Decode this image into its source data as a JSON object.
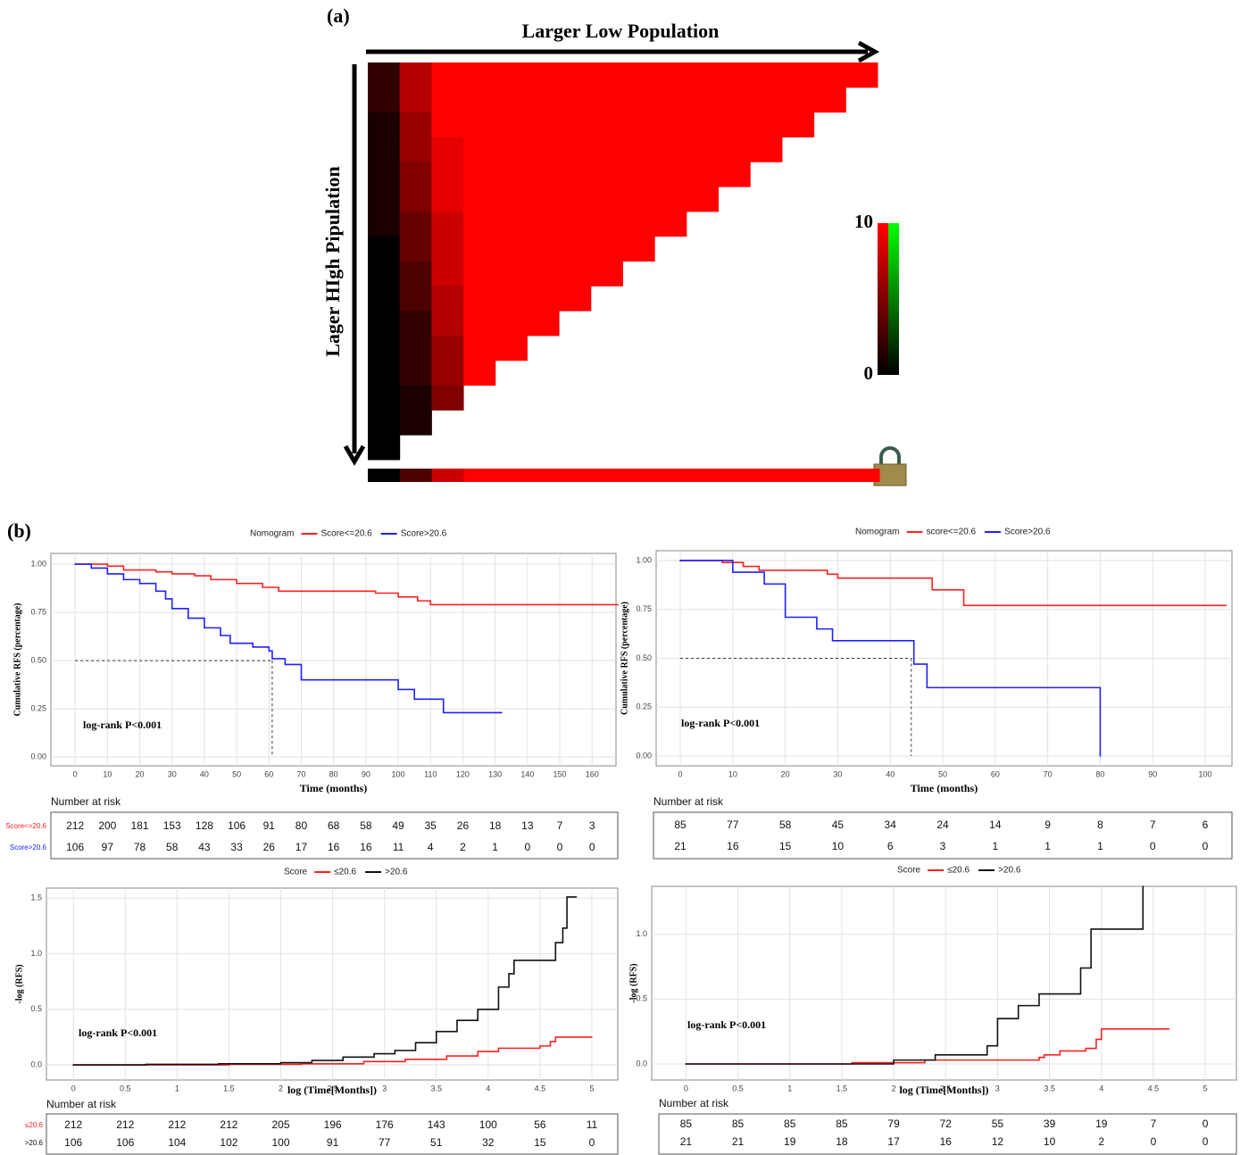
{
  "chart_data": [
    {
      "type": "heatmap",
      "panel_label": "(a)",
      "xlabel": "Larger Low Population",
      "ylabel": "Lager HIgh Pipulation",
      "values": [
        [
          2,
          7,
          10,
          10,
          10,
          10,
          10,
          10,
          10,
          10,
          10,
          10,
          10,
          10,
          10,
          10
        ],
        [
          2,
          7,
          10,
          10,
          10,
          10,
          10,
          10,
          10,
          10,
          10,
          10,
          10,
          10,
          10,
          null
        ],
        [
          1,
          6,
          10,
          10,
          10,
          10,
          10,
          10,
          10,
          10,
          10,
          10,
          10,
          10,
          null,
          null
        ],
        [
          1,
          6,
          9,
          10,
          10,
          10,
          10,
          10,
          10,
          10,
          10,
          10,
          10,
          null,
          null,
          null
        ],
        [
          1,
          5,
          9,
          10,
          10,
          10,
          10,
          10,
          10,
          10,
          10,
          10,
          null,
          null,
          null,
          null
        ],
        [
          1,
          5,
          9,
          10,
          10,
          10,
          10,
          10,
          10,
          10,
          10,
          null,
          null,
          null,
          null,
          null
        ],
        [
          1,
          4,
          8,
          10,
          10,
          10,
          10,
          10,
          10,
          10,
          null,
          null,
          null,
          null,
          null,
          null
        ],
        [
          0,
          4,
          8,
          10,
          10,
          10,
          10,
          10,
          10,
          null,
          null,
          null,
          null,
          null,
          null,
          null
        ],
        [
          0,
          3,
          8,
          10,
          10,
          10,
          10,
          10,
          null,
          null,
          null,
          null,
          null,
          null,
          null,
          null
        ],
        [
          0,
          3,
          7,
          10,
          10,
          10,
          10,
          null,
          null,
          null,
          null,
          null,
          null,
          null,
          null,
          null
        ],
        [
          0,
          2,
          7,
          10,
          10,
          10,
          null,
          null,
          null,
          null,
          null,
          null,
          null,
          null,
          null,
          null
        ],
        [
          0,
          2,
          6,
          10,
          10,
          null,
          null,
          null,
          null,
          null,
          null,
          null,
          null,
          null,
          null,
          null
        ],
        [
          0,
          2,
          6,
          10,
          null,
          null,
          null,
          null,
          null,
          null,
          null,
          null,
          null,
          null,
          null,
          null
        ],
        [
          0,
          1,
          5,
          null,
          null,
          null,
          null,
          null,
          null,
          null,
          null,
          null,
          null,
          null,
          null,
          null
        ],
        [
          0,
          1,
          null,
          null,
          null,
          null,
          null,
          null,
          null,
          null,
          null,
          null,
          null,
          null,
          null,
          null
        ],
        [
          0,
          null,
          null,
          null,
          null,
          null,
          null,
          null,
          null,
          null,
          null,
          null,
          null,
          null,
          null,
          null
        ]
      ],
      "strip": [
        0,
        3,
        8,
        10,
        10,
        10,
        10,
        10,
        10,
        10,
        10,
        10,
        10,
        10,
        10,
        10
      ],
      "colorbar": {
        "lim": [
          0,
          10
        ],
        "ticks": [
          0,
          10
        ]
      },
      "low_color": "#000000",
      "high_color": "#ff0000",
      "alt_color": "#00ff00"
    },
    {
      "type": "step",
      "panel_label": "(b)",
      "legend_title": "Nomogram",
      "series": [
        {
          "name": "Score<=20.6",
          "color": "#ff2020",
          "x": [
            0,
            10,
            15,
            25,
            30,
            37,
            42,
            50,
            58,
            63,
            90,
            93,
            100,
            106,
            110,
            168
          ],
          "values": [
            1,
            0.99,
            0.97,
            0.96,
            0.95,
            0.94,
            0.92,
            0.9,
            0.88,
            0.86,
            0.86,
            0.85,
            0.83,
            0.81,
            0.79,
            0.79
          ]
        },
        {
          "name": "Score>20.6",
          "color": "#2020ff",
          "x": [
            0,
            5,
            10,
            15,
            20,
            25,
            28,
            30,
            35,
            40,
            45,
            48,
            55,
            60,
            61,
            65,
            70,
            92,
            100,
            105,
            114,
            132
          ],
          "values": [
            1,
            0.98,
            0.95,
            0.92,
            0.9,
            0.86,
            0.82,
            0.77,
            0.72,
            0.67,
            0.63,
            0.59,
            0.57,
            0.55,
            0.51,
            0.48,
            0.4,
            0.4,
            0.35,
            0.3,
            0.23,
            0.23
          ]
        }
      ],
      "xlabel": "Time (months)",
      "ylabel": "Cumulative RFS (percentage)",
      "xlim": [
        -7.5,
        167.4
      ],
      "ylim": [
        -0.046,
        1.056
      ],
      "xticks": [
        0,
        10,
        20,
        30,
        40,
        50,
        60,
        70,
        80,
        90,
        100,
        110,
        120,
        130,
        140,
        150,
        160
      ],
      "yticks": [
        {
          "value": 0,
          "label": "0.00"
        },
        0.25,
        {
          "value": 0.5,
          "label": "0.50"
        },
        0.75,
        {
          "value": 1,
          "label": "1.00"
        }
      ],
      "annotation": "log-rank P<0.001",
      "median_line": {
        "x": 61,
        "y": 0.5
      },
      "risk_table": {
        "title": "Number at risk",
        "rows": [
          {
            "name": "Score<=20.6",
            "color": "#ff2020",
            "values": [
              212,
              200,
              181,
              153,
              128,
              106,
              91,
              80,
              68,
              58,
              49,
              35,
              26,
              18,
              13,
              7,
              3
            ]
          },
          {
            "name": "Score>20.6",
            "color": "#2020ff",
            "values": [
              106,
              97,
              78,
              58,
              43,
              33,
              26,
              17,
              16,
              16,
              11,
              4,
              2,
              1,
              0,
              0,
              0
            ]
          }
        ]
      }
    },
    {
      "type": "step",
      "legend_title": "Nomogram",
      "series": [
        {
          "name": "score<=20.6",
          "color": "#ff2020",
          "x": [
            0,
            8,
            12,
            15,
            25,
            28,
            30,
            45,
            48,
            54,
            104
          ],
          "values": [
            1,
            0.99,
            0.97,
            0.95,
            0.95,
            0.93,
            0.91,
            0.91,
            0.85,
            0.77,
            0.77
          ]
        },
        {
          "name": "Score>20.6",
          "color": "#2020ff",
          "x": [
            0,
            10,
            16,
            20,
            26,
            29,
            44,
            44.5,
            47,
            80,
            80
          ],
          "values": [
            1,
            0.94,
            0.88,
            0.71,
            0.65,
            0.59,
            0.59,
            0.47,
            0.35,
            0.35,
            0
          ]
        }
      ],
      "xlabel": "Time (months)",
      "ylabel": "Cumulative RFS (percentage)",
      "xlim": [
        -4.6,
        105.1
      ],
      "ylim": [
        -0.05,
        1.05
      ],
      "xticks": [
        0,
        10,
        20,
        30,
        40,
        50,
        60,
        70,
        80,
        90,
        100
      ],
      "yticks": [
        {
          "value": 0,
          "label": "0.00"
        },
        0.25,
        {
          "value": 0.5,
          "label": "0.50"
        },
        0.75,
        {
          "value": 1,
          "label": "1.00"
        }
      ],
      "annotation": "log-rank P<0.001",
      "median_line": {
        "x": 44,
        "y": 0.5
      },
      "risk_table": {
        "title": "Number at risk",
        "rows": [
          {
            "values": [
              85,
              77,
              58,
              45,
              34,
              24,
              14,
              9,
              8,
              7,
              6
            ]
          },
          {
            "values": [
              21,
              16,
              15,
              10,
              6,
              3,
              1,
              1,
              1,
              0,
              0
            ]
          }
        ]
      }
    },
    {
      "type": "step",
      "legend_title": "Score",
      "series": [
        {
          "name": "≤20.6",
          "color": "#ff2020",
          "x": [
            0,
            1.5,
            2.2,
            2.8,
            3.2,
            3.6,
            3.9,
            4.1,
            4.5,
            4.6,
            4.65,
            5
          ],
          "values": [
            0,
            0.005,
            0.01,
            0.03,
            0.05,
            0.08,
            0.12,
            0.15,
            0.17,
            0.21,
            0.25,
            0.25
          ]
        },
        {
          "name": ">20.6",
          "color": "#111111",
          "x": [
            0,
            0.7,
            1.4,
            2,
            2.3,
            2.6,
            2.9,
            3.1,
            3.3,
            3.5,
            3.7,
            3.9,
            4.1,
            4.2,
            4.25,
            4.6,
            4.65,
            4.72,
            4.76,
            4.85
          ],
          "values": [
            0,
            0.005,
            0.01,
            0.02,
            0.04,
            0.07,
            0.1,
            0.13,
            0.2,
            0.3,
            0.4,
            0.5,
            0.7,
            0.82,
            0.94,
            0.94,
            1.1,
            1.23,
            1.51,
            1.51
          ]
        }
      ],
      "xlabel": "log (Time[Months])",
      "ylabel": "-log (RFS)",
      "xlim": [
        -0.26,
        5.25
      ],
      "ylim": [
        -0.136,
        1.59
      ],
      "xticks": [
        0,
        0.5,
        1,
        1.5,
        2,
        2.5,
        3,
        3.5,
        4,
        4.5,
        5
      ],
      "yticks": [
        {
          "value": 0,
          "label": "0.0"
        },
        0.5,
        {
          "value": 1,
          "label": "1.0"
        },
        1.5
      ],
      "annotation": "log-rank P<0.001",
      "risk_table": {
        "title": "Number at risk",
        "rows": [
          {
            "name": "≤20.6",
            "color": "#ff2020",
            "values": [
              212,
              212,
              212,
              212,
              205,
              196,
              176,
              143,
              100,
              56,
              11
            ]
          },
          {
            "name": ">20.6",
            "color": "#111111",
            "values": [
              106,
              106,
              104,
              102,
              100,
              91,
              77,
              51,
              32,
              15,
              0
            ]
          }
        ]
      }
    },
    {
      "type": "step",
      "legend_title": "Score",
      "series": [
        {
          "name": "≤20.6",
          "color": "#ff2020",
          "x": [
            0,
            1.6,
            2.3,
            3.4,
            3.45,
            3.6,
            3.85,
            3.95,
            4,
            4.65
          ],
          "values": [
            0,
            0.01,
            0.03,
            0.05,
            0.07,
            0.1,
            0.12,
            0.19,
            0.27,
            0.27
          ]
        },
        {
          "name": ">20.6",
          "color": "#111111",
          "x": [
            0,
            2,
            2.4,
            2.9,
            3,
            3.2,
            3.4,
            3.8,
            3.9,
            4.4
          ],
          "values": [
            0,
            0.03,
            0.07,
            0.14,
            0.35,
            0.45,
            0.54,
            0.74,
            1.04,
            1.37
          ]
        }
      ],
      "xlabel": "log (Time[Months])",
      "ylabel": "-log (RFS)",
      "xlim": [
        -0.33,
        5.3
      ],
      "ylim": [
        -0.124,
        1.37
      ],
      "xticks": [
        0,
        0.5,
        1,
        1.5,
        2,
        2.5,
        3,
        3.5,
        4,
        4.5,
        5
      ],
      "yticks": [
        {
          "value": 0,
          "label": "0.0"
        },
        0.5,
        {
          "value": 1,
          "label": "1.0"
        }
      ],
      "annotation": "log-rank P<0.001",
      "risk_table": {
        "title": "Number at risk",
        "rows": [
          {
            "values": [
              85,
              85,
              85,
              85,
              79,
              72,
              55,
              39,
              19,
              7,
              0
            ]
          },
          {
            "values": [
              21,
              21,
              19,
              18,
              17,
              16,
              12,
              10,
              2,
              0,
              0
            ]
          }
        ]
      }
    }
  ]
}
